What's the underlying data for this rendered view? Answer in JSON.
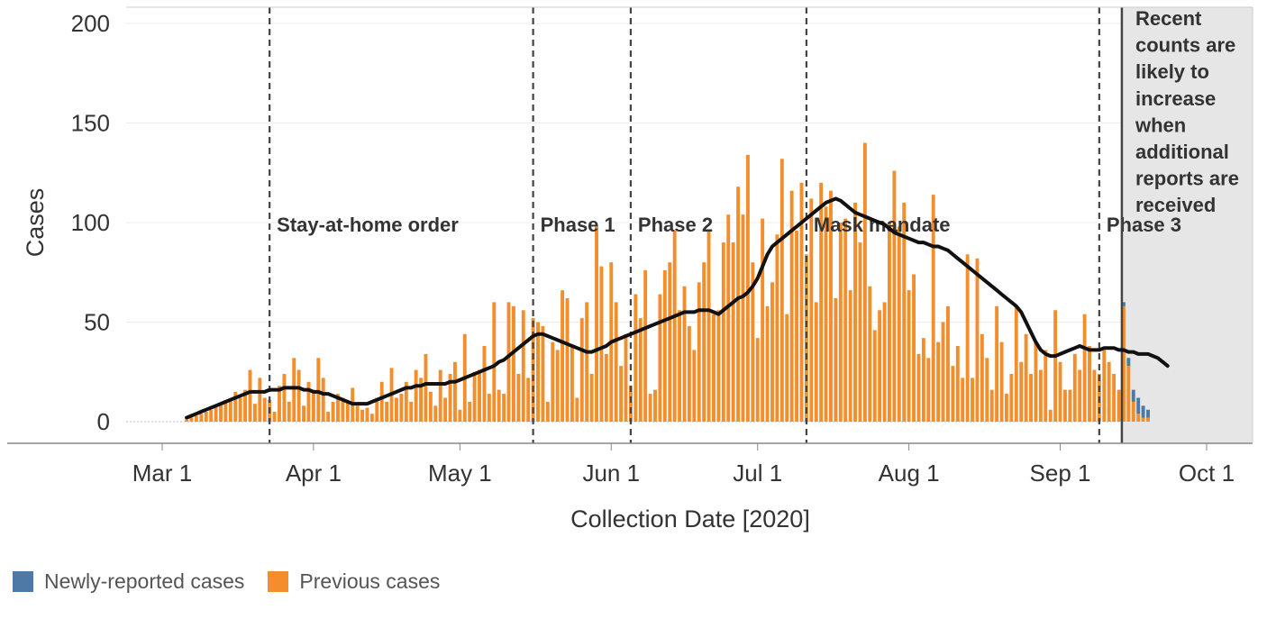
{
  "chart_data": {
    "type": "bar",
    "title": "",
    "xlabel": "Collection Date [2020]",
    "ylabel": "Cases",
    "ylim": [
      0,
      200
    ],
    "yticks": [
      0,
      50,
      100,
      150,
      200
    ],
    "xticks": [
      {
        "label": "Mar 1",
        "date": "2020-03-01"
      },
      {
        "label": "Apr 1",
        "date": "2020-04-01"
      },
      {
        "label": "May 1",
        "date": "2020-05-01"
      },
      {
        "label": "Jun 1",
        "date": "2020-06-01"
      },
      {
        "label": "Jul 1",
        "date": "2020-07-01"
      },
      {
        "label": "Aug 1",
        "date": "2020-08-01"
      },
      {
        "label": "Sep 1",
        "date": "2020-09-01"
      },
      {
        "label": "Oct 1",
        "date": "2020-10-01"
      }
    ],
    "grid": true,
    "legend_position": "bottom-left",
    "bar_start_date": "2020-03-06",
    "series": [
      {
        "name": "Previous cases",
        "color": "#F28E2B",
        "values": [
          1,
          2,
          3,
          4,
          5,
          6,
          8,
          9,
          10,
          11,
          15,
          12,
          16,
          26,
          9,
          22,
          12,
          11,
          5,
          18,
          24,
          10,
          32,
          26,
          8,
          20,
          16,
          32,
          22,
          5,
          10,
          14,
          12,
          10,
          17,
          8,
          6,
          7,
          4,
          12,
          20,
          10,
          27,
          12,
          14,
          20,
          10,
          26,
          22,
          34,
          15,
          8,
          26,
          12,
          24,
          30,
          6,
          44,
          10,
          25,
          26,
          38,
          14,
          60,
          16,
          14,
          60,
          58,
          24,
          56,
          22,
          52,
          50,
          48,
          10,
          40,
          36,
          66,
          62,
          38,
          12,
          52,
          60,
          24,
          98,
          78,
          34,
          80,
          60,
          28,
          44,
          18,
          64,
          52,
          76,
          14,
          16,
          64,
          76,
          80,
          96,
          56,
          68,
          48,
          36,
          70,
          80,
          96,
          54,
          56,
          90,
          104,
          90,
          118,
          104,
          134,
          80,
          42,
          102,
          58,
          70,
          94,
          132,
          54,
          116,
          96,
          120,
          84,
          112,
          60,
          120,
          108,
          116,
          62,
          100,
          102,
          66,
          110,
          90,
          140,
          68,
          46,
          56,
          60,
          100,
          126,
          98,
          110,
          66,
          74,
          34,
          42,
          32,
          114,
          40,
          50,
          58,
          28,
          38,
          22,
          84,
          22,
          82,
          44,
          32,
          16,
          58,
          40,
          14,
          24,
          58,
          30,
          44,
          24,
          40,
          26,
          36,
          6,
          56,
          30,
          16,
          16,
          34,
          26,
          54,
          38,
          26,
          24,
          36,
          30,
          24,
          16,
          58,
          28,
          10,
          4,
          2,
          2
        ],
        "smooth": [
          2,
          3,
          4,
          5,
          6,
          7,
          8,
          9,
          10,
          11,
          12,
          13,
          14,
          15,
          15,
          15,
          15,
          16,
          16,
          16,
          17,
          17,
          17,
          17,
          16,
          16,
          15,
          15,
          14,
          14,
          13,
          12,
          11,
          10,
          9,
          9,
          9,
          9,
          10,
          11,
          12,
          13,
          14,
          15,
          16,
          17,
          17,
          18,
          18,
          19,
          19,
          19,
          19,
          19,
          20,
          20,
          21,
          22,
          23,
          24,
          25,
          26,
          27,
          28,
          30,
          31,
          33,
          35,
          37,
          39,
          41,
          43,
          44,
          44,
          43,
          42,
          41,
          40,
          39,
          38,
          37,
          36,
          35,
          35,
          36,
          37,
          38,
          40,
          41,
          42,
          43,
          44,
          45,
          46,
          47,
          48,
          49,
          50,
          51,
          52,
          53,
          54,
          55,
          55,
          55,
          56,
          56,
          56,
          55,
          54,
          56,
          58,
          60,
          62,
          63,
          65,
          68,
          72,
          78,
          84,
          88,
          90,
          92,
          94,
          96,
          98,
          100,
          102,
          104,
          106,
          108,
          110,
          111,
          112,
          111,
          109,
          107,
          105,
          104,
          103,
          102,
          101,
          100,
          99,
          97,
          95,
          94,
          93,
          92,
          91,
          90,
          90,
          89,
          88,
          88,
          87,
          86,
          84,
          82,
          80,
          78,
          76,
          74,
          72,
          70,
          68,
          66,
          64,
          62,
          60,
          58,
          55,
          50,
          45,
          40,
          36,
          34,
          33,
          33,
          34,
          35,
          36,
          37,
          38,
          37,
          36,
          36,
          36,
          37,
          37,
          37,
          36,
          36,
          35,
          35,
          34,
          34,
          34,
          33,
          32,
          30,
          28
        ]
      },
      {
        "name": "Newly-reported cases",
        "color": "#4E79A7",
        "tail_values": [
          0,
          0,
          0,
          0,
          0,
          0,
          2,
          4,
          6,
          8,
          6,
          4
        ]
      }
    ],
    "events": [
      {
        "label": "Stay-at-home order",
        "date": "2020-03-23"
      },
      {
        "label": "Phase 1",
        "date": "2020-05-16"
      },
      {
        "label": "Phase 2",
        "date": "2020-06-05"
      },
      {
        "label": "Mask mandate",
        "date": "2020-07-11"
      },
      {
        "label": "Phase 3",
        "date": "2020-09-09"
      }
    ],
    "recent_region_start": "2020-09-14",
    "recent_note": [
      "Recent",
      "counts are",
      "likely to",
      "increase",
      "when",
      "additional",
      "reports are",
      "received"
    ]
  }
}
